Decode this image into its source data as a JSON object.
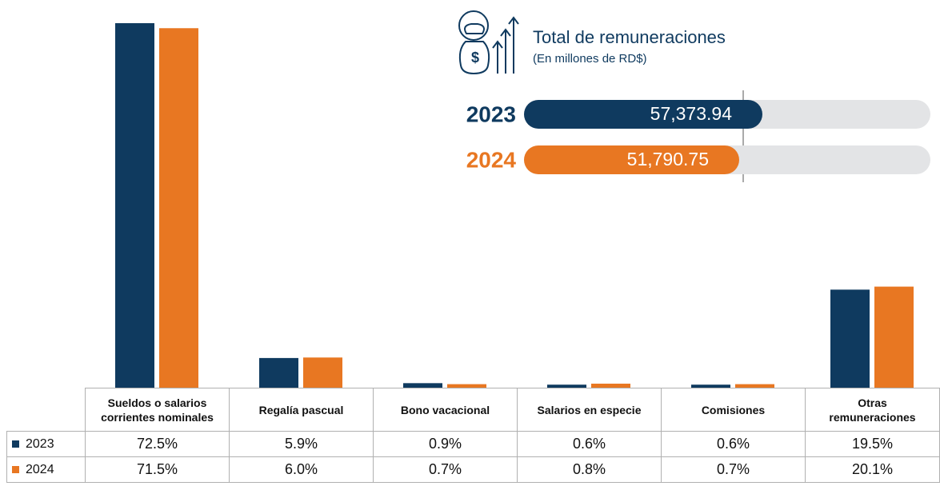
{
  "chart_data": {
    "type": "bar",
    "categories": [
      "Sueldos o salarios corrientes nominales",
      "Regalía pascual",
      "Bono vacacional",
      "Salarios en especie",
      "Comisiones",
      "Otras remuneraciones"
    ],
    "series": [
      {
        "name": "2023",
        "color": "#0f3a5f",
        "values": [
          72.5,
          5.9,
          0.9,
          0.6,
          0.6,
          19.5
        ],
        "value_labels": [
          "72.5%",
          "5.9%",
          "0.9%",
          "0.6%",
          "0.6%",
          "19.5%"
        ]
      },
      {
        "name": "2024",
        "color": "#e87722",
        "values": [
          71.5,
          6.0,
          0.7,
          0.8,
          0.7,
          20.1
        ],
        "value_labels": [
          "71.5%",
          "6.0%",
          "0.7%",
          "0.8%",
          "0.7%",
          "20.1%"
        ]
      }
    ],
    "totals": {
      "title": "Total de remuneraciones",
      "subtitle": "(En millones de RD$)",
      "items": [
        {
          "name": "2023",
          "color": "#0f3a5f",
          "value": 57373.94,
          "label": "57,373.94"
        },
        {
          "name": "2024",
          "color": "#e87722",
          "value": 51790.75,
          "label": "51,790.75"
        }
      ]
    }
  }
}
